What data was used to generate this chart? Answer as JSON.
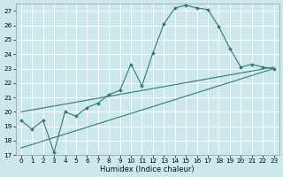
{
  "xlabel": "Humidex (Indice chaleur)",
  "bg_color": "#cce8ec",
  "grid_color": "#ffffff",
  "line_color": "#2e7d6e",
  "ylim": [
    17,
    27.5
  ],
  "xlim": [
    -0.5,
    23.5
  ],
  "yticks": [
    17,
    18,
    19,
    20,
    21,
    22,
    23,
    24,
    25,
    26,
    27
  ],
  "xticks": [
    0,
    1,
    2,
    3,
    4,
    5,
    6,
    7,
    8,
    9,
    10,
    11,
    12,
    13,
    14,
    15,
    16,
    17,
    18,
    19,
    20,
    21,
    22,
    23
  ],
  "curve1_x": [
    0,
    1,
    2,
    3,
    4,
    5,
    6,
    7,
    8,
    9,
    10,
    11,
    12,
    13,
    14,
    15,
    16,
    17,
    18,
    19,
    20,
    21,
    22,
    23
  ],
  "curve1_y": [
    19.4,
    18.8,
    19.4,
    17.2,
    20.0,
    19.7,
    20.3,
    20.6,
    21.2,
    21.5,
    23.3,
    21.8,
    24.1,
    26.1,
    27.2,
    27.4,
    27.2,
    27.1,
    25.9,
    24.4,
    23.1,
    23.3,
    23.1,
    23.0
  ],
  "line1_x": [
    0,
    23
  ],
  "line1_y": [
    20.0,
    23.1
  ],
  "line2_x": [
    0,
    23
  ],
  "line2_y": [
    17.5,
    23.0
  ]
}
